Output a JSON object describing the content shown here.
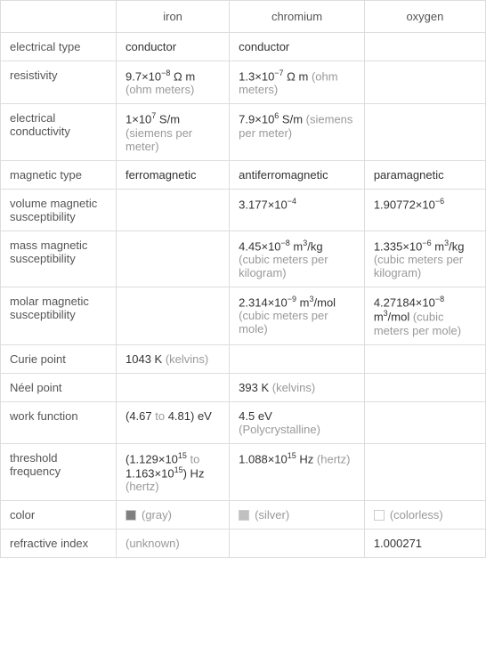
{
  "columns": {
    "col1": "iron",
    "col2": "chromium",
    "col3": "oxygen"
  },
  "rows": {
    "electrical_type": {
      "label": "electrical type",
      "iron": "conductor",
      "chromium": "conductor",
      "oxygen": ""
    },
    "resistivity": {
      "label": "resistivity",
      "iron_val": "9.7×10",
      "iron_exp": "−8",
      "iron_unit1": " Ω m",
      "iron_unit2": "(ohm meters)",
      "chromium_val": "1.3×10",
      "chromium_exp": "−7",
      "chromium_unit1": " Ω m",
      "chromium_unit2": "(ohm meters)"
    },
    "conductivity": {
      "label": "electrical conductivity",
      "iron_val": "1×10",
      "iron_exp": "7",
      "iron_unit1": " S/m",
      "iron_unit2": "(siemens per meter)",
      "chromium_val": "7.9×10",
      "chromium_exp": "6",
      "chromium_unit1": " S/m",
      "chromium_unit2": "(siemens per meter)"
    },
    "magnetic_type": {
      "label": "magnetic type",
      "iron": "ferromagnetic",
      "chromium": "antiferromagnetic",
      "oxygen": "paramagnetic"
    },
    "volume_susc": {
      "label": "volume magnetic susceptibility",
      "chromium_val": "3.177×10",
      "chromium_exp": "−4",
      "oxygen_val": "1.90772×10",
      "oxygen_exp": "−6"
    },
    "mass_susc": {
      "label": "mass magnetic susceptibility",
      "chromium_val": "4.45×10",
      "chromium_exp": "−8",
      "chromium_unit1": " m",
      "chromium_exp2": "3",
      "chromium_unit2": "/kg ",
      "chromium_unit3": "(cubic meters per kilogram)",
      "oxygen_val": "1.335×10",
      "oxygen_exp": "−6",
      "oxygen_unit1": " m",
      "oxygen_exp2": "3",
      "oxygen_unit2": "/kg ",
      "oxygen_unit3": "(cubic meters per kilogram)"
    },
    "molar_susc": {
      "label": "molar magnetic susceptibility",
      "chromium_val": "2.314×10",
      "chromium_exp": "−9",
      "chromium_unit1": " m",
      "chromium_exp2": "3",
      "chromium_unit2": "/mol ",
      "chromium_unit3": "(cubic meters per mole)",
      "oxygen_val": "4.27184×10",
      "oxygen_exp": "−8",
      "oxygen_unit1": " m",
      "oxygen_exp2": "3",
      "oxygen_unit2": "/mol ",
      "oxygen_unit3": "(cubic meters per mole)"
    },
    "curie": {
      "label": "Curie point",
      "iron_val": "1043 K ",
      "iron_unit": "(kelvins)"
    },
    "neel": {
      "label": "Néel point",
      "chromium_val": "393 K ",
      "chromium_unit": "(kelvins)"
    },
    "work_function": {
      "label": "work function",
      "iron_1": "(4.67 ",
      "iron_to": "to",
      "iron_2": " 4.81) eV",
      "chromium_val": "4.5 eV ",
      "chromium_unit": "(Polycrystalline)"
    },
    "threshold": {
      "label": "threshold frequency",
      "iron_1": "(1.129×10",
      "iron_exp1": "15",
      "iron_to": " to ",
      "iron_2": "1.163×10",
      "iron_exp2": "15",
      "iron_3": ") Hz ",
      "iron_unit": "(hertz)",
      "chromium_val": "1.088×10",
      "chromium_exp": "15",
      "chromium_unit1": " Hz ",
      "chromium_unit2": "(hertz)"
    },
    "color": {
      "label": "color",
      "iron": "(gray)",
      "iron_color": "#808080",
      "chromium": "(silver)",
      "chromium_color": "#c0c0c0",
      "oxygen": "(colorless)"
    },
    "refractive": {
      "label": "refractive index",
      "iron": "(unknown)",
      "oxygen": "1.000271"
    }
  },
  "styles": {
    "border_color": "#dddddd",
    "text_color": "#333333",
    "unit_color": "#999999",
    "label_color": "#555555",
    "bg_color": "#ffffff"
  }
}
